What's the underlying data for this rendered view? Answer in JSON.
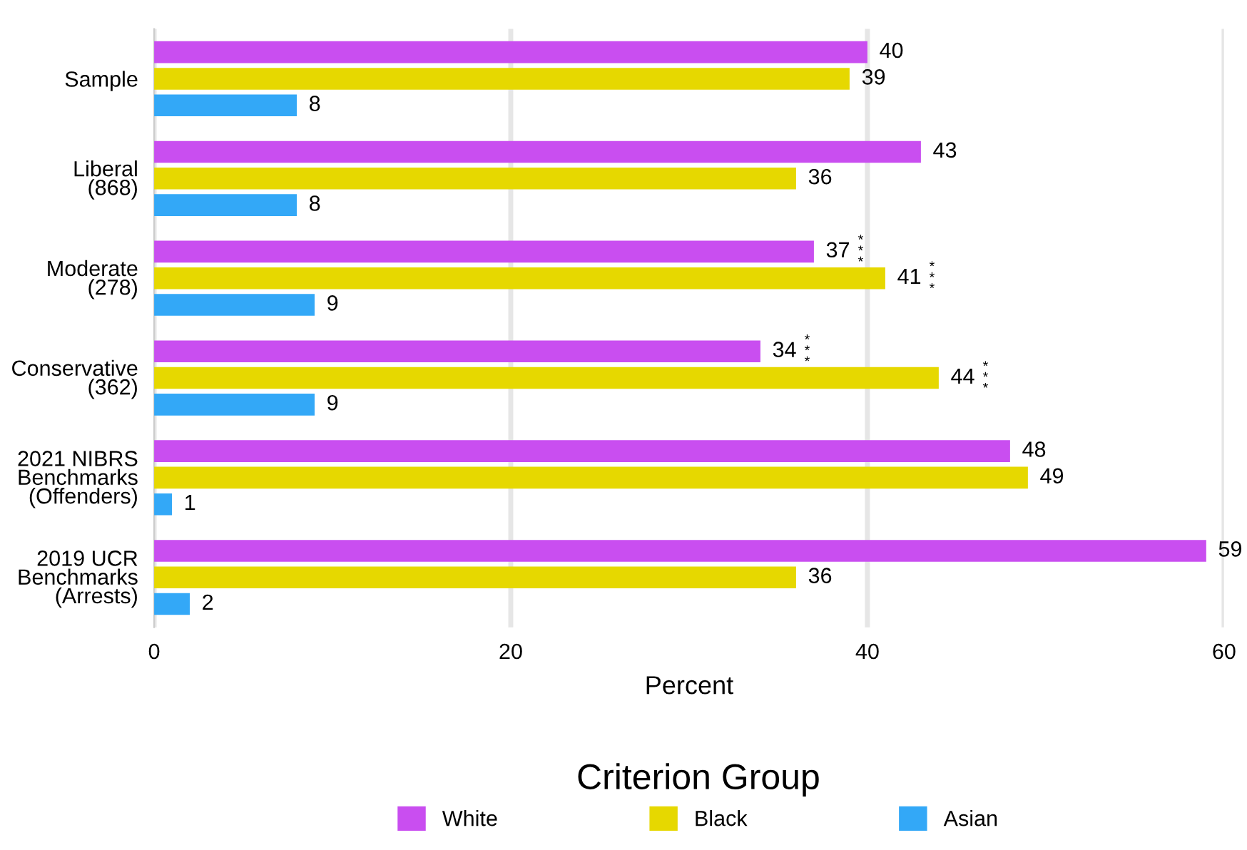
{
  "chart_data": {
    "type": "bar",
    "orientation": "horizontal",
    "categories": [
      "Sample",
      "Liberal\n(868)",
      "Moderate\n(278)",
      "Conservative\n(362)",
      "2021 NIBRS\nBenchmarks\n(Offenders)",
      "2019 UCR\nBenchmarks\n(Arrests)"
    ],
    "series": [
      {
        "name": "White",
        "color": "#c94ef0",
        "values": [
          40,
          43,
          37,
          34,
          48,
          59
        ],
        "value_labels": [
          "40",
          "43",
          "37 ***",
          "34 ***",
          "48",
          "59"
        ]
      },
      {
        "name": "Black",
        "color": "#e6d800",
        "values": [
          39,
          36,
          41,
          44,
          49,
          36
        ],
        "value_labels": [
          "39",
          "36",
          "41 ***",
          "44 ***",
          "49",
          "36"
        ]
      },
      {
        "name": "Asian",
        "color": "#33a8f7",
        "values": [
          8,
          8,
          9,
          9,
          1,
          2
        ],
        "value_labels": [
          "8",
          "8",
          "9",
          "9",
          "1",
          "2"
        ]
      }
    ],
    "xlabel": "Percent",
    "legend_title": "Criterion Group",
    "legend": "bottom",
    "xlim": [
      0,
      60
    ],
    "xticks": [
      0,
      20,
      40,
      60
    ],
    "grid": "x"
  }
}
